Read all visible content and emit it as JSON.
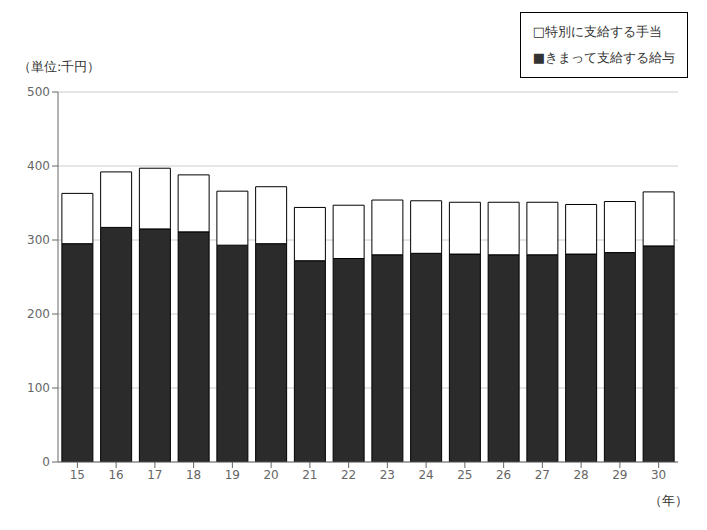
{
  "chart_data": {
    "type": "bar",
    "stacked": true,
    "grid": true,
    "x_label": "（年）",
    "y_label": "（単位:千円）",
    "categories": [
      "15",
      "16",
      "17",
      "18",
      "19",
      "20",
      "21",
      "22",
      "23",
      "24",
      "25",
      "26",
      "27",
      "28",
      "29",
      "30"
    ],
    "series": [
      {
        "name": "■きまって支給する給与",
        "color": "#2b2b2b",
        "values": [
          295,
          317,
          315,
          311,
          293,
          295,
          272,
          275,
          280,
          282,
          281,
          280,
          280,
          281,
          283,
          292
        ]
      },
      {
        "name": "□特別に支給する手当",
        "color": "#ffffff",
        "values": [
          68,
          75,
          82,
          77,
          73,
          77,
          72,
          72,
          74,
          71,
          70,
          71,
          71,
          67,
          69,
          73
        ]
      }
    ],
    "ylim": [
      0,
      500
    ],
    "yticks": [
      0,
      100,
      200,
      300,
      400,
      500
    ]
  }
}
